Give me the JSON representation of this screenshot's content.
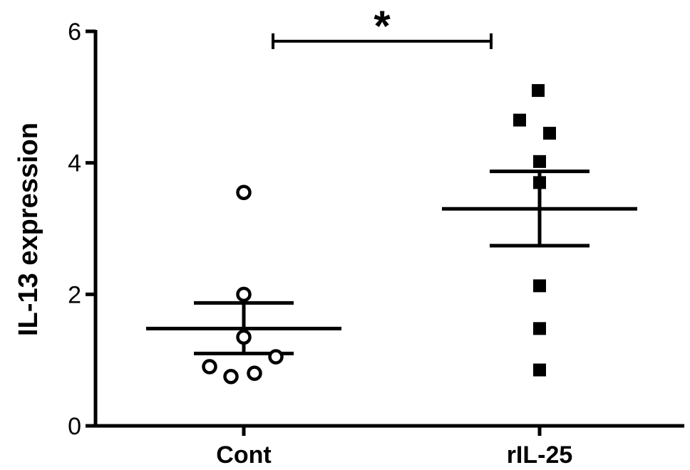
{
  "chart_data": {
    "type": "scatter",
    "title": "",
    "xlabel": "",
    "ylabel": "IL-13 expression",
    "ylim": [
      0,
      6
    ],
    "yticks": [
      0,
      2,
      4,
      6
    ],
    "ytick_labels": [
      "0",
      "2",
      "4",
      "6"
    ],
    "grid": false,
    "categories": [
      "Cont",
      "rIL-25"
    ],
    "series": [
      {
        "category": "Cont",
        "marker": "open-circle",
        "values": [
          3.55,
          2.0,
          1.35,
          1.05,
          0.9,
          0.8,
          0.75
        ],
        "mean": 1.48,
        "sem_upper": 1.87,
        "sem_lower": 1.1
      },
      {
        "category": "rIL-25",
        "marker": "filled-square",
        "values": [
          5.1,
          4.65,
          4.45,
          4.02,
          3.7,
          2.13,
          1.48,
          0.85
        ],
        "mean": 3.3,
        "sem_upper": 3.87,
        "sem_lower": 2.74
      }
    ],
    "annotations": [
      {
        "type": "significance-bracket",
        "from": "Cont",
        "to": "rIL-25",
        "y": 5.85,
        "label": "*"
      }
    ],
    "colors": {
      "axis": "#000000",
      "marker": "#000000",
      "background": "#ffffff"
    }
  }
}
